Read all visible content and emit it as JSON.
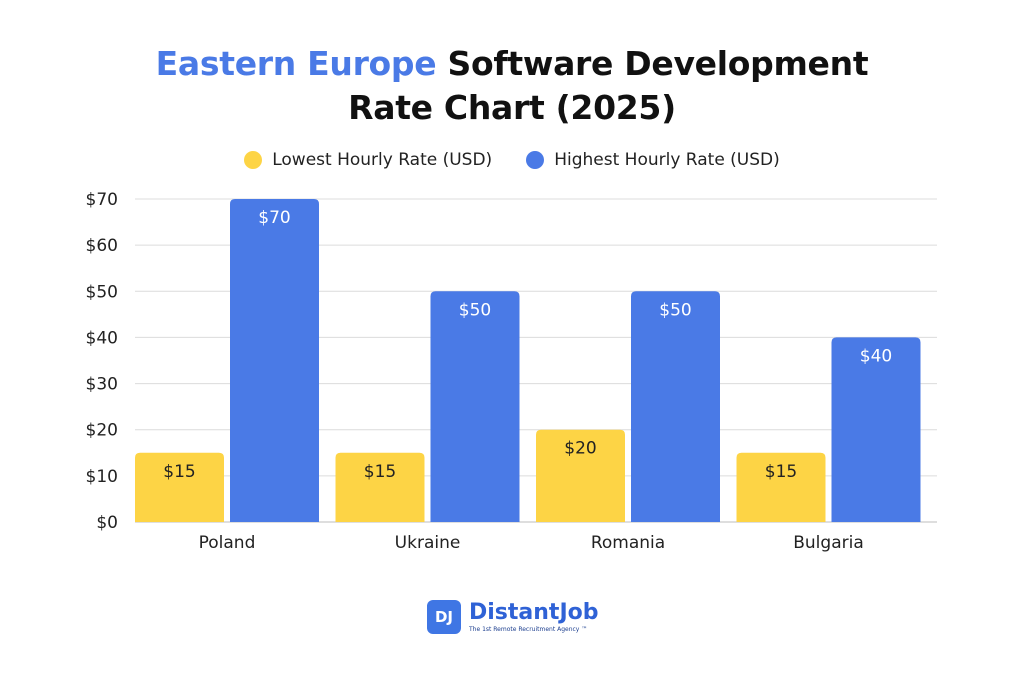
{
  "chart_data": {
    "type": "bar",
    "title_accent": "Eastern Europe",
    "title_rest_line1": "Software Development",
    "title_line2": "Rate Chart (2025)",
    "categories": [
      "Poland",
      "Ukraine",
      "Romania",
      "Bulgaria"
    ],
    "series": [
      {
        "name": "Lowest Hourly Rate (USD)",
        "color": "#fdd445",
        "values": [
          15,
          15,
          20,
          15
        ],
        "labels": [
          "$15",
          "$15",
          "$20",
          "$15"
        ]
      },
      {
        "name": "Highest Hourly Rate (USD)",
        "color": "#4a7ae6",
        "values": [
          70,
          50,
          50,
          40
        ],
        "labels": [
          "$70",
          "$50",
          "$50",
          "$40"
        ]
      }
    ],
    "yticks": [
      0,
      10,
      20,
      30,
      40,
      50,
      60,
      70
    ],
    "ytick_labels": [
      "$0",
      "$10",
      "$20",
      "$30",
      "$40",
      "$50",
      "$60",
      "$70"
    ],
    "ylim": [
      0,
      70
    ],
    "grid": true,
    "legend_position": "top-center"
  },
  "logo": {
    "badge": "DJ",
    "name": "DistantJob",
    "tagline": "The 1st Remote Recruitment Agency ™"
  }
}
